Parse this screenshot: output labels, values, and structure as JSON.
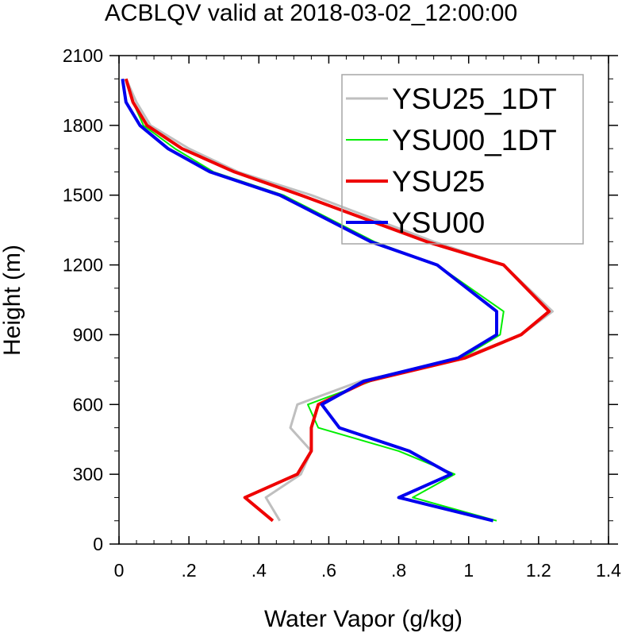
{
  "chart_data": {
    "type": "line",
    "title": "ACBLQV valid at 2018-03-02_12:00:00",
    "xlabel": "Water Vapor (g/kg)",
    "ylabel": "Height (m)",
    "xlim": [
      0,
      1.4
    ],
    "ylim": [
      0,
      2100
    ],
    "xticks": [
      0,
      0.2,
      0.4,
      0.6,
      0.8,
      1.0,
      1.2,
      1.4
    ],
    "xtick_labels": [
      "0",
      ".2",
      ".4",
      ".6",
      ".8",
      "1",
      "1.2",
      "1.4"
    ],
    "yticks": [
      0,
      300,
      600,
      900,
      1200,
      1500,
      1800,
      2100
    ],
    "ytick_labels": [
      "0",
      "300",
      "600",
      "900",
      "1200",
      "1500",
      "1800",
      "2100"
    ],
    "grid": false,
    "legend_position": "top-right",
    "series": [
      {
        "name": "YSU25_1DT",
        "color": "#bfbfbf",
        "width": 3,
        "points": [
          [
            0.46,
            100
          ],
          [
            0.42,
            200
          ],
          [
            0.52,
            300
          ],
          [
            0.55,
            400
          ],
          [
            0.49,
            500
          ],
          [
            0.51,
            600
          ],
          [
            0.69,
            700
          ],
          [
            0.98,
            800
          ],
          [
            1.15,
            900
          ],
          [
            1.24,
            1000
          ],
          [
            1.1,
            1200
          ],
          [
            0.9,
            1300
          ],
          [
            0.55,
            1500
          ],
          [
            0.34,
            1600
          ],
          [
            0.2,
            1700
          ],
          [
            0.09,
            1800
          ],
          [
            0.05,
            1900
          ],
          [
            0.02,
            2000
          ]
        ]
      },
      {
        "name": "YSU00_1DT",
        "color": "#00ee00",
        "width": 2,
        "points": [
          [
            1.08,
            100
          ],
          [
            0.84,
            200
          ],
          [
            0.96,
            300
          ],
          [
            0.8,
            400
          ],
          [
            0.57,
            500
          ],
          [
            0.54,
            600
          ],
          [
            0.72,
            700
          ],
          [
            0.98,
            800
          ],
          [
            1.09,
            900
          ],
          [
            1.1,
            1000
          ],
          [
            0.91,
            1200
          ],
          [
            0.73,
            1300
          ],
          [
            0.47,
            1500
          ],
          [
            0.27,
            1600
          ],
          [
            0.16,
            1700
          ],
          [
            0.07,
            1800
          ],
          [
            0.04,
            1900
          ],
          [
            0.02,
            2000
          ]
        ]
      },
      {
        "name": "YSU25",
        "color": "#ee0000",
        "width": 4,
        "points": [
          [
            0.44,
            100
          ],
          [
            0.36,
            200
          ],
          [
            0.51,
            300
          ],
          [
            0.55,
            400
          ],
          [
            0.55,
            500
          ],
          [
            0.57,
            600
          ],
          [
            0.71,
            700
          ],
          [
            0.99,
            800
          ],
          [
            1.15,
            900
          ],
          [
            1.23,
            1000
          ],
          [
            1.1,
            1200
          ],
          [
            0.88,
            1300
          ],
          [
            0.52,
            1500
          ],
          [
            0.33,
            1600
          ],
          [
            0.18,
            1700
          ],
          [
            0.08,
            1800
          ],
          [
            0.04,
            1900
          ],
          [
            0.02,
            2000
          ]
        ]
      },
      {
        "name": "YSU00",
        "color": "#0000ee",
        "width": 4,
        "points": [
          [
            1.07,
            100
          ],
          [
            0.8,
            200
          ],
          [
            0.95,
            300
          ],
          [
            0.83,
            400
          ],
          [
            0.63,
            500
          ],
          [
            0.58,
            600
          ],
          [
            0.7,
            700
          ],
          [
            0.97,
            800
          ],
          [
            1.08,
            900
          ],
          [
            1.08,
            1000
          ],
          [
            0.91,
            1200
          ],
          [
            0.72,
            1300
          ],
          [
            0.46,
            1500
          ],
          [
            0.26,
            1600
          ],
          [
            0.14,
            1700
          ],
          [
            0.06,
            1800
          ],
          [
            0.02,
            1900
          ],
          [
            0.01,
            2000
          ]
        ]
      }
    ]
  }
}
